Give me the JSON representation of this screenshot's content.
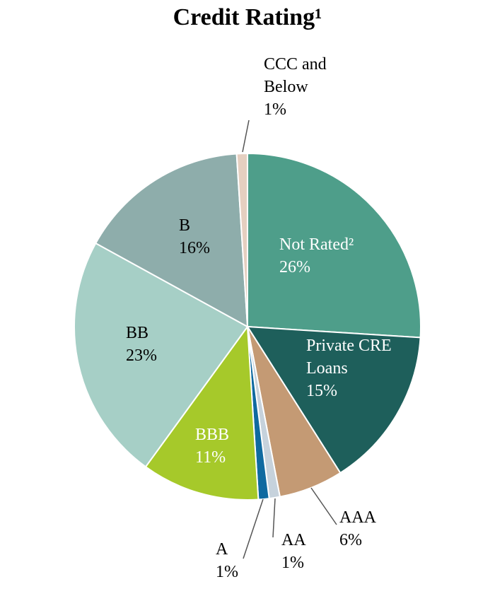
{
  "chart_data": {
    "type": "pie",
    "title": "Credit Rating¹",
    "categories": [
      "Not Rated²",
      "Private CRE Loans",
      "AAA",
      "AA",
      "A",
      "BBB",
      "BB",
      "B",
      "CCC and Below"
    ],
    "values": [
      26,
      15,
      6,
      1,
      1,
      11,
      23,
      16,
      1
    ],
    "value_labels": [
      "26%",
      "15%",
      "6%",
      "1%",
      "1%",
      "11%",
      "23%",
      "16%",
      "1%"
    ],
    "colors": [
      "#4e9e8a",
      "#1e5f5b",
      "#c49a74",
      "#c6d2dc",
      "#0f6aa0",
      "#a6c92a",
      "#a6cfc6",
      "#8eadab",
      "#e5cfc0"
    ]
  }
}
